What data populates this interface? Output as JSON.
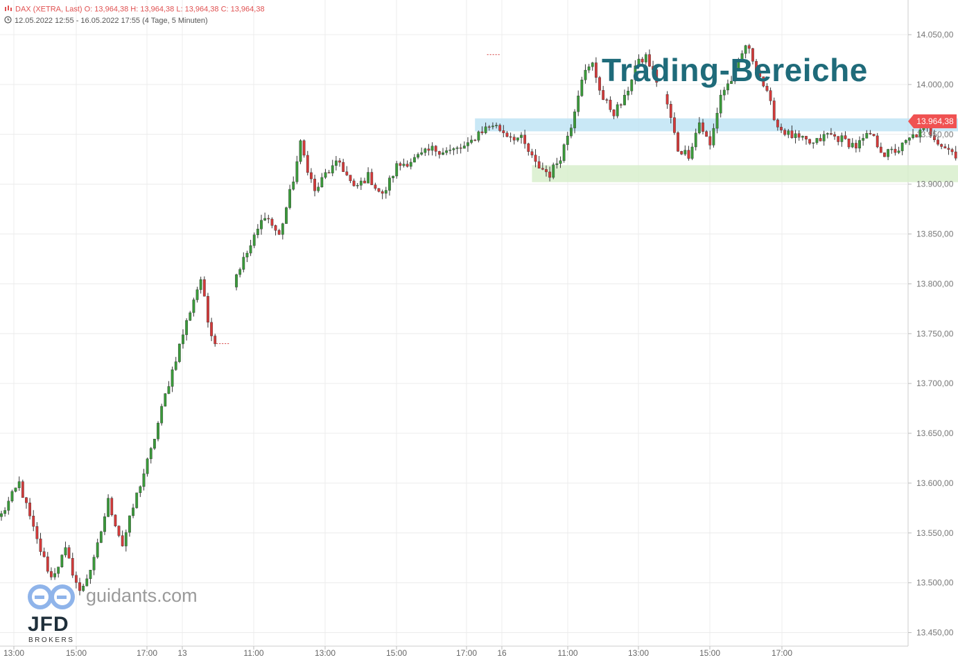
{
  "header": {
    "line1": "DAX (XETRA, Last)  O: 13,964,38  H: 13,964,38  L: 13,964,38  C: 13,964,38",
    "line2": "12.05.2022 12:55 - 16.05.2022 17:55   (4 Tage, 5 Minuten)"
  },
  "annotation": {
    "title": "Trading-Bereiche"
  },
  "branding": {
    "site": "guidants.com",
    "broker": "JFD",
    "broker_sub": "BROKERS"
  },
  "last_price": {
    "label": "13.964,38",
    "value": 13964.38
  },
  "colors": {
    "up": "#3a9a3a",
    "down": "#d43a3a",
    "zone_resistance": "#bfe4f5",
    "zone_support": "#d8efcc",
    "title": "#1f6b7a",
    "badge": "#f05252"
  },
  "chart_data": {
    "type": "candlestick",
    "y_axis": {
      "range": [
        13437,
        14075
      ],
      "ticks": [
        14050,
        14000,
        13950,
        13900,
        13850,
        13800,
        13750,
        13700,
        13650,
        13600,
        13550,
        13500,
        13450
      ],
      "tick_labels": [
        "14.050,00",
        "14.000,00",
        "13.950,00",
        "13.900,00",
        "13.850,00",
        "13.800,00",
        "13.750,00",
        "13.700,00",
        "13.650,00",
        "13.600,00",
        "13.550,00",
        "13.500,00",
        "13.450,00"
      ],
      "position": "right"
    },
    "x_axis": {
      "labels": [
        "13:00",
        "15:00",
        "17:00",
        "13",
        "11:00",
        "13:00",
        "15:00",
        "17:00",
        "16",
        "11:00",
        "13:00",
        "15:00",
        "17:00"
      ]
    },
    "grid": true,
    "zones": [
      {
        "name": "resistance",
        "y_low": 13953,
        "y_high": 13966,
        "x_from_candle": 133,
        "x_to_candle": 321
      },
      {
        "name": "support",
        "y_low": 13902,
        "y_high": 13919,
        "x_from_candle": 149,
        "x_to_candle": 322
      }
    ],
    "keypoints": [
      [
        0,
        13568
      ],
      [
        5,
        13600
      ],
      [
        10,
        13542
      ],
      [
        14,
        13505
      ],
      [
        18,
        13532
      ],
      [
        22,
        13490
      ],
      [
        26,
        13522
      ],
      [
        30,
        13582
      ],
      [
        34,
        13538
      ],
      [
        38,
        13588
      ],
      [
        42,
        13632
      ],
      [
        46,
        13688
      ],
      [
        50,
        13738
      ],
      [
        54,
        13785
      ],
      [
        56,
        13805
      ],
      [
        58,
        13762
      ],
      [
        60,
        13742
      ],
      [
        66,
        13810
      ],
      [
        70,
        13838
      ],
      [
        74,
        13870
      ],
      [
        78,
        13848
      ],
      [
        82,
        13905
      ],
      [
        84,
        13940
      ],
      [
        88,
        13892
      ],
      [
        91,
        13910
      ],
      [
        95,
        13922
      ],
      [
        99,
        13895
      ],
      [
        103,
        13908
      ],
      [
        107,
        13888
      ],
      [
        111,
        13918
      ],
      [
        116,
        13925
      ],
      [
        121,
        13935
      ],
      [
        126,
        13933
      ],
      [
        131,
        13938
      ],
      [
        134,
        13952
      ],
      [
        138,
        13960
      ],
      [
        142,
        13950
      ],
      [
        146,
        13945
      ],
      [
        150,
        13920
      ],
      [
        154,
        13910
      ],
      [
        157,
        13928
      ],
      [
        160,
        13960
      ],
      [
        163,
        14008
      ],
      [
        166,
        14020
      ],
      [
        169,
        13985
      ],
      [
        172,
        13972
      ],
      [
        175,
        13985
      ],
      [
        178,
        14018
      ],
      [
        181,
        14028
      ],
      [
        187,
        13980
      ],
      [
        190,
        13935
      ],
      [
        193,
        13930
      ],
      [
        196,
        13962
      ],
      [
        199,
        13938
      ],
      [
        202,
        13990
      ],
      [
        206,
        14010
      ],
      [
        209,
        14040
      ],
      [
        212,
        14018
      ],
      [
        215,
        13990
      ],
      [
        218,
        13958
      ],
      [
        221,
        13950
      ],
      [
        224,
        13945
      ],
      [
        228,
        13940
      ],
      [
        232,
        13950
      ],
      [
        236,
        13945
      ],
      [
        240,
        13938
      ],
      [
        244,
        13950
      ],
      [
        248,
        13930
      ],
      [
        252,
        13935
      ],
      [
        256,
        13948
      ],
      [
        260,
        13955
      ],
      [
        264,
        13940
      ],
      [
        268,
        13930
      ],
      [
        272,
        13915
      ],
      [
        275,
        13888
      ],
      [
        278,
        13870
      ],
      [
        281,
        13908
      ],
      [
        284,
        13945
      ],
      [
        287,
        13932
      ],
      [
        290,
        13918
      ],
      [
        293,
        13912
      ],
      [
        296,
        13930
      ],
      [
        299,
        13940
      ],
      [
        302,
        13964.38
      ]
    ],
    "last": {
      "x_candle": 302,
      "value": 13964.38
    }
  }
}
